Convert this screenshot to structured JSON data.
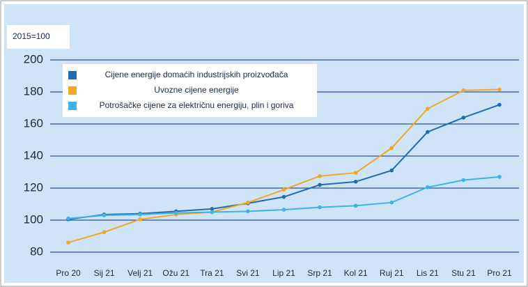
{
  "chart_data": {
    "type": "line",
    "subtitle": "2015=100",
    "categories": [
      "Pro 20",
      "Sij 21",
      "Velj 21",
      "Ožu 21",
      "Tra 21",
      "Svi 21",
      "Lip 21",
      "Srp 21",
      "Kol 21",
      "Ruj 21",
      "Lis 21",
      "Stu 21",
      "Pro 21"
    ],
    "series": [
      {
        "name": "Cijene energije domaćih industrijskih proizvođača",
        "color": "#1f6db0",
        "values": [
          100.5,
          103.5,
          104,
          105.5,
          107,
          110.5,
          114.5,
          122,
          124,
          131,
          155,
          164,
          172
        ]
      },
      {
        "name": "Uvozne cijene energije",
        "color": "#f2a72a",
        "values": [
          86,
          92.5,
          100.5,
          103.5,
          105,
          111,
          119,
          127.5,
          129.5,
          145,
          169.5,
          181,
          181.5
        ]
      },
      {
        "name": "Potrošačke cijene za električnu energiju, plin i goriva",
        "color": "#3db3e6",
        "values": [
          101,
          103,
          103.5,
          104.5,
          105,
          105.5,
          106.5,
          108,
          109,
          111,
          120.5,
          125,
          127
        ]
      }
    ],
    "ylim": [
      80,
      200
    ],
    "yticks": [
      80,
      100,
      120,
      140,
      160,
      180,
      200
    ],
    "grid": true,
    "legend": "upper-left"
  }
}
